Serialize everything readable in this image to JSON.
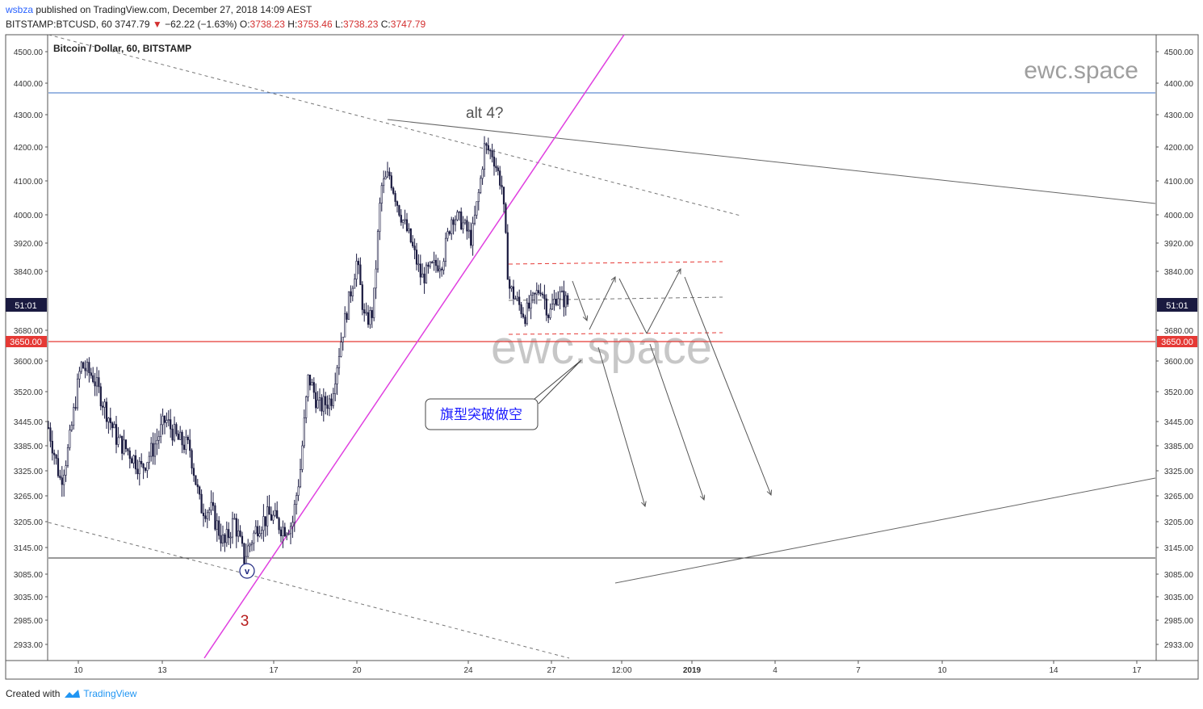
{
  "header": {
    "user": "wsbza",
    "published_text": "published on TradingView.com, December 27, 2018 14:09 AEST",
    "symbol": "BITSTAMP:BTCUSD, 60",
    "last": "3747.79",
    "change_arrow": "▼",
    "change": "−62.22 (−1.63%)",
    "o_label": "O:",
    "o": "3738.23",
    "h_label": "H:",
    "h": "3753.46",
    "l_label": "L:",
    "l": "3738.23",
    "c_label": "C:",
    "c": "3747.79"
  },
  "footer": {
    "created_with": "Created with",
    "brand": "TradingView"
  },
  "chart_data": {
    "type": "candlestick",
    "title": "Bitcoin / Dollar, 60, BITSTAMP",
    "watermark": "ewc.space",
    "y_ticks": [
      "4500.00",
      "4400.00",
      "4300.00",
      "4200.00",
      "4100.00",
      "4000.00",
      "3920.00",
      "3840.00",
      "3680.00",
      "3600.00",
      "3520.00",
      "3445.00",
      "3385.00",
      "3325.00",
      "3265.00",
      "3205.00",
      "3145.00",
      "3085.00",
      "3035.00",
      "2985.00",
      "2933.00"
    ],
    "x_ticks": [
      "10",
      "13",
      "17",
      "20",
      "24",
      "27",
      "12:00",
      "2019",
      "4",
      "7",
      "10",
      "14",
      "17"
    ],
    "price_label": "3650.00",
    "countdown_label": "51:01",
    "annotations": {
      "alt4": "alt 4?",
      "wave_v": "v",
      "wave_3": "3",
      "callout": "旗型突破做空"
    },
    "colors": {
      "candle": "#1a1a40",
      "magenta_trendline": "#e040e0",
      "horizontal_blue": "#3a6fc4",
      "horizontal_red": "#e53935",
      "flag_red_dashed": "#e53935",
      "projection": "#555555",
      "wave_3": "#b71c1c",
      "wave_v_circle": "#1a237e",
      "callout_text": "#1a1aff"
    }
  }
}
